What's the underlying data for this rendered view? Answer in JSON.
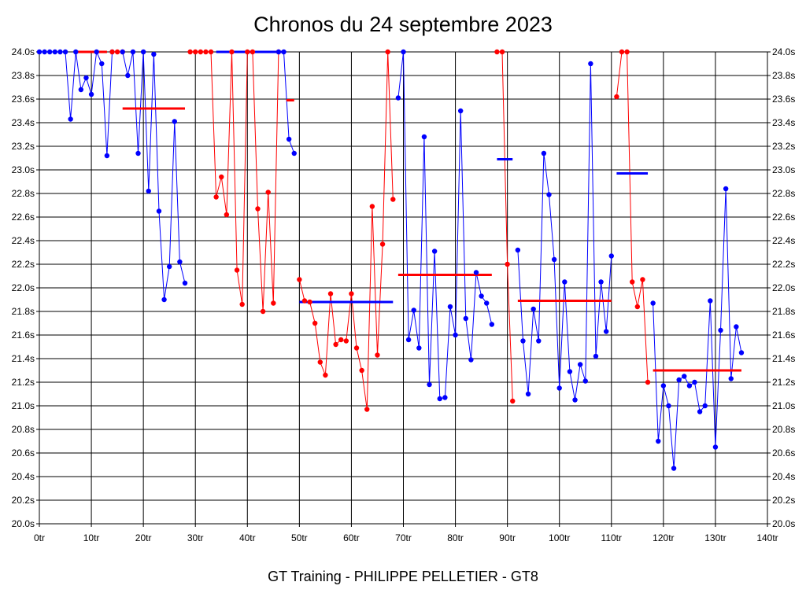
{
  "chart_data": {
    "type": "line",
    "title": "Chronos du 24 septembre 2023",
    "footer": "GT Training - PHILIPPE PELLETIER - GT8",
    "xlabel": "",
    "ylabel": "",
    "xlim": [
      0,
      140
    ],
    "ylim": [
      20.0,
      24.0
    ],
    "x_ticks": [
      0,
      10,
      20,
      30,
      40,
      50,
      60,
      70,
      80,
      90,
      100,
      110,
      120,
      130,
      140
    ],
    "x_tick_labels": [
      "0tr",
      "10tr",
      "20tr",
      "30tr",
      "40tr",
      "50tr",
      "60tr",
      "70tr",
      "80tr",
      "90tr",
      "100tr",
      "110tr",
      "120tr",
      "130tr",
      "140tr"
    ],
    "y_ticks": [
      20.0,
      20.2,
      20.4,
      20.6,
      20.8,
      21.0,
      21.2,
      21.4,
      21.6,
      21.8,
      22.0,
      22.2,
      22.4,
      22.6,
      22.8,
      23.0,
      23.2,
      23.4,
      23.6,
      23.8,
      24.0
    ],
    "y_tick_labels": [
      "20.0s",
      "20.2s",
      "20.4s",
      "20.6s",
      "20.8s",
      "21.0s",
      "21.2s",
      "21.4s",
      "21.6s",
      "21.8s",
      "22.0s",
      "22.2s",
      "22.4s",
      "22.6s",
      "22.8s",
      "23.0s",
      "23.2s",
      "23.4s",
      "23.6s",
      "23.8s",
      "24.0s"
    ],
    "grid": true,
    "colors": {
      "blue": "#0000ff",
      "red": "#ff0000"
    },
    "series": [
      {
        "color": "blue",
        "points": [
          [
            0,
            24.0
          ],
          [
            1,
            24.0
          ],
          [
            2,
            24.0
          ],
          [
            3,
            24.0
          ],
          [
            4,
            24.0
          ],
          [
            5,
            24.0
          ],
          [
            6,
            23.43
          ],
          [
            7,
            24.0
          ],
          [
            8,
            23.68
          ],
          [
            9,
            23.78
          ],
          [
            10,
            23.64
          ],
          [
            11,
            24.0
          ],
          [
            12,
            23.9
          ],
          [
            13,
            23.12
          ],
          [
            14,
            24.0
          ]
        ]
      },
      {
        "color": "red",
        "points": [
          [
            14,
            24.0
          ],
          [
            15,
            24.0
          ],
          [
            16,
            24.0
          ]
        ]
      },
      {
        "color": "blue",
        "points": [
          [
            16,
            24.0
          ],
          [
            17,
            23.8
          ],
          [
            18,
            24.0
          ],
          [
            19,
            23.14
          ],
          [
            20,
            24.0
          ],
          [
            21,
            22.82
          ],
          [
            22,
            23.98
          ],
          [
            23,
            22.65
          ],
          [
            24,
            21.9
          ],
          [
            25,
            22.18
          ],
          [
            26,
            23.41
          ],
          [
            27,
            22.22
          ],
          [
            28,
            22.04
          ]
        ]
      },
      {
        "color": "red",
        "points": [
          [
            29,
            24.0
          ],
          [
            30,
            24.0
          ],
          [
            31,
            24.0
          ],
          [
            32,
            24.0
          ],
          [
            33,
            24.0
          ],
          [
            34,
            22.77
          ],
          [
            35,
            22.94
          ],
          [
            36,
            22.62
          ],
          [
            37,
            24.0
          ],
          [
            38,
            22.15
          ],
          [
            39,
            21.86
          ],
          [
            40,
            24.0
          ],
          [
            41,
            24.0
          ],
          [
            42,
            22.67
          ],
          [
            43,
            21.8
          ],
          [
            44,
            22.81
          ],
          [
            45,
            21.87
          ],
          [
            46,
            24.0
          ]
        ]
      },
      {
        "color": "blue",
        "points": [
          [
            46,
            24.0
          ],
          [
            47,
            24.0
          ],
          [
            48,
            23.26
          ],
          [
            49,
            23.14
          ]
        ]
      },
      {
        "color": "red",
        "points": [
          [
            50,
            22.07
          ],
          [
            51,
            21.89
          ],
          [
            52,
            21.88
          ],
          [
            53,
            21.7
          ],
          [
            54,
            21.37
          ],
          [
            55,
            21.26
          ],
          [
            56,
            21.95
          ],
          [
            57,
            21.52
          ],
          [
            58,
            21.56
          ],
          [
            59,
            21.55
          ],
          [
            60,
            21.95
          ],
          [
            61,
            21.49
          ],
          [
            62,
            21.3
          ],
          [
            63,
            20.97
          ],
          [
            64,
            22.69
          ],
          [
            65,
            21.43
          ],
          [
            66,
            22.37
          ],
          [
            67,
            24.0
          ],
          [
            68,
            22.75
          ]
        ]
      },
      {
        "color": "blue",
        "points": [
          [
            69,
            23.61
          ],
          [
            70,
            24.0
          ],
          [
            71,
            21.56
          ],
          [
            72,
            21.81
          ],
          [
            73,
            21.49
          ],
          [
            74,
            23.28
          ],
          [
            75,
            21.18
          ],
          [
            76,
            22.31
          ],
          [
            77,
            21.06
          ],
          [
            78,
            21.07
          ],
          [
            79,
            21.84
          ],
          [
            80,
            21.6
          ],
          [
            81,
            23.5
          ],
          [
            82,
            21.74
          ],
          [
            83,
            21.39
          ],
          [
            84,
            22.13
          ],
          [
            85,
            21.93
          ],
          [
            86,
            21.87
          ],
          [
            87,
            21.69
          ]
        ]
      },
      {
        "color": "red",
        "points": [
          [
            88,
            24.0
          ],
          [
            89,
            24.0
          ],
          [
            90,
            22.2
          ],
          [
            91,
            21.04
          ]
        ]
      },
      {
        "color": "blue",
        "points": [
          [
            92,
            22.32
          ],
          [
            93,
            21.55
          ],
          [
            94,
            21.1
          ],
          [
            95,
            21.82
          ],
          [
            96,
            21.55
          ],
          [
            97,
            23.14
          ],
          [
            98,
            22.79
          ],
          [
            99,
            22.24
          ],
          [
            100,
            21.15
          ],
          [
            101,
            22.05
          ],
          [
            102,
            21.29
          ],
          [
            103,
            21.05
          ],
          [
            104,
            21.35
          ],
          [
            105,
            21.21
          ],
          [
            106,
            23.9
          ],
          [
            107,
            21.42
          ],
          [
            108,
            22.05
          ],
          [
            109,
            21.63
          ],
          [
            110,
            22.27
          ]
        ]
      },
      {
        "color": "red",
        "points": [
          [
            111,
            23.62
          ],
          [
            112,
            24.0
          ],
          [
            113,
            24.0
          ],
          [
            114,
            22.05
          ],
          [
            115,
            21.84
          ],
          [
            116,
            22.07
          ],
          [
            117,
            21.2
          ]
        ]
      },
      {
        "color": "blue",
        "points": [
          [
            118,
            21.87
          ],
          [
            119,
            20.7
          ],
          [
            120,
            21.17
          ],
          [
            121,
            21.0
          ],
          [
            122,
            20.47
          ],
          [
            123,
            21.22
          ],
          [
            124,
            21.25
          ],
          [
            125,
            21.17
          ],
          [
            126,
            21.2
          ],
          [
            127,
            20.95
          ],
          [
            128,
            21.0
          ],
          [
            129,
            21.89
          ],
          [
            130,
            20.65
          ],
          [
            131,
            21.64
          ],
          [
            132,
            22.84
          ],
          [
            133,
            21.23
          ],
          [
            134,
            21.67
          ],
          [
            135,
            21.45
          ]
        ]
      }
    ],
    "average_lines": [
      {
        "color": "red",
        "x": [
          7,
          13
        ],
        "y": 24.0
      },
      {
        "color": "red",
        "x": [
          16,
          28
        ],
        "y": 23.52
      },
      {
        "color": "blue",
        "x": [
          34,
          47
        ],
        "y": 24.0
      },
      {
        "color": "red",
        "x": [
          47.5,
          49
        ],
        "y": 23.59
      },
      {
        "color": "blue",
        "x": [
          50,
          68
        ],
        "y": 21.88
      },
      {
        "color": "red",
        "x": [
          69,
          87
        ],
        "y": 22.11
      },
      {
        "color": "blue",
        "x": [
          88,
          91
        ],
        "y": 23.09
      },
      {
        "color": "red",
        "x": [
          92,
          110
        ],
        "y": 21.89
      },
      {
        "color": "blue",
        "x": [
          111,
          117
        ],
        "y": 22.97
      },
      {
        "color": "red",
        "x": [
          118,
          135
        ],
        "y": 21.3
      }
    ]
  }
}
